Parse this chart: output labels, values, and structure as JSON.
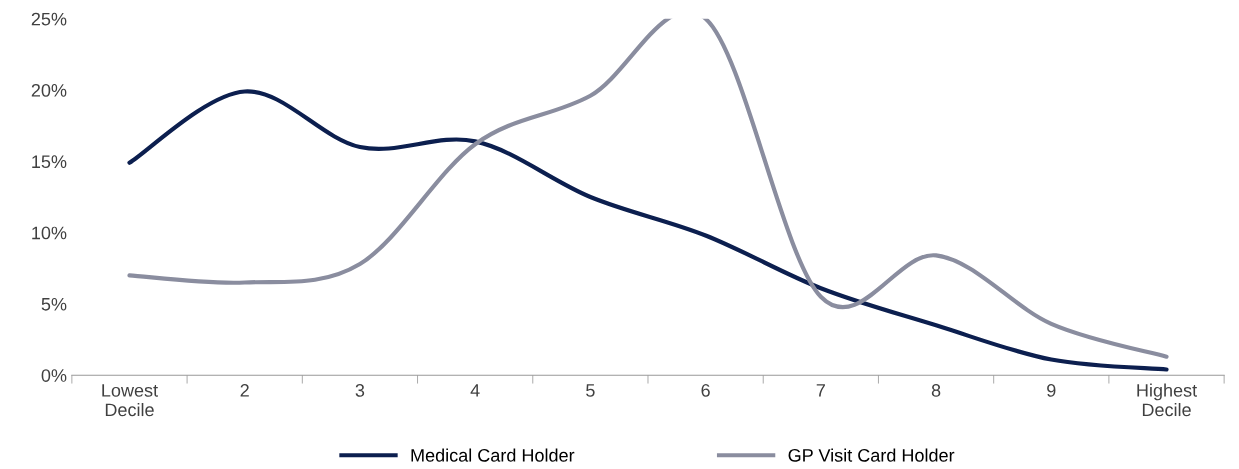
{
  "chart_data": {
    "type": "line",
    "categories": [
      "Lowest\nDecile",
      "2",
      "3",
      "4",
      "5",
      "6",
      "7",
      "8",
      "9",
      "Highest\nDecile"
    ],
    "series": [
      {
        "name": "Medical Card Holder",
        "color": "#0c1f4f",
        "values": [
          14.9,
          19.9,
          16.0,
          16.4,
          12.5,
          9.8,
          6.1,
          3.5,
          1.1,
          0.4
        ]
      },
      {
        "name": "GP Visit Card Holder",
        "color": "#8a8d9f",
        "values": [
          7.0,
          6.5,
          7.8,
          16.2,
          19.6,
          25.0,
          5.5,
          8.4,
          3.6,
          1.3
        ]
      }
    ],
    "ylim": [
      0,
      25
    ],
    "yticks": [
      {
        "value": 0,
        "label": "0%"
      },
      {
        "value": 5,
        "label": "5%"
      },
      {
        "value": 10,
        "label": "10%"
      },
      {
        "value": 15,
        "label": "15%"
      },
      {
        "value": 20,
        "label": "20%"
      },
      {
        "value": 25,
        "label": "25%"
      }
    ],
    "legend": "bottom",
    "grid": false,
    "marker": "none",
    "line_style": "solid"
  }
}
